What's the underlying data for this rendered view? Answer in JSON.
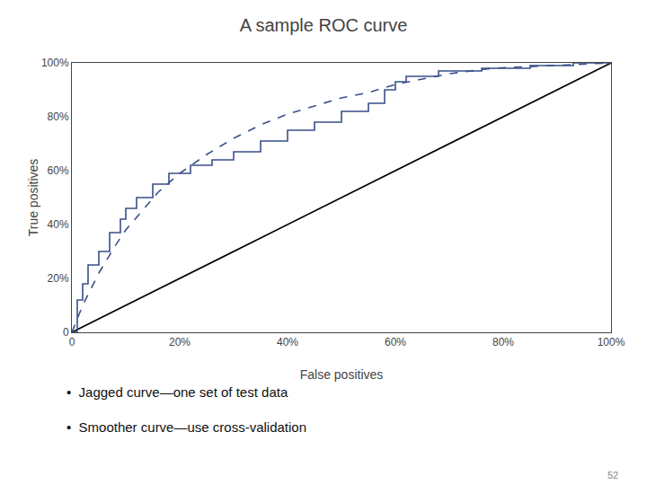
{
  "chart_data": {
    "type": "line",
    "title": "A sample ROC curve",
    "x_label": "False positives",
    "y_label": "True positives",
    "series": [
      {
        "x": [
          0,
          1
        ],
        "values": [
          0,
          1
        ],
        "color": "#000000",
        "line_style": "solid"
      },
      {
        "x": [
          0,
          0.02,
          0.05,
          0.08,
          0.1,
          0.13,
          0.16,
          0.2,
          0.25,
          0.3,
          0.35,
          0.4,
          0.45,
          0.5,
          0.55,
          0.6,
          0.65,
          0.7,
          0.78,
          0.88,
          1.0
        ],
        "values": [
          0,
          0.1,
          0.22,
          0.32,
          0.38,
          0.45,
          0.52,
          0.59,
          0.66,
          0.72,
          0.77,
          0.81,
          0.84,
          0.87,
          0.89,
          0.92,
          0.94,
          0.96,
          0.98,
          0.99,
          1.0
        ],
        "color": "#3a4f8a",
        "line_style": "dashed"
      },
      {
        "x": [
          0,
          0.01,
          0.01,
          0.02,
          0.02,
          0.03,
          0.03,
          0.05,
          0.05,
          0.07,
          0.07,
          0.09,
          0.09,
          0.1,
          0.1,
          0.12,
          0.12,
          0.15,
          0.15,
          0.18,
          0.18,
          0.22,
          0.22,
          0.26,
          0.26,
          0.3,
          0.3,
          0.35,
          0.35,
          0.4,
          0.4,
          0.45,
          0.45,
          0.5,
          0.5,
          0.55,
          0.55,
          0.58,
          0.58,
          0.6,
          0.6,
          0.62,
          0.62,
          0.68,
          0.68,
          0.76,
          0.76,
          0.85,
          0.85,
          0.93,
          0.93,
          1.0
        ],
        "values": [
          0,
          0,
          0.12,
          0.12,
          0.18,
          0.18,
          0.25,
          0.25,
          0.3,
          0.3,
          0.37,
          0.37,
          0.42,
          0.42,
          0.46,
          0.46,
          0.5,
          0.5,
          0.55,
          0.55,
          0.59,
          0.59,
          0.62,
          0.62,
          0.64,
          0.64,
          0.67,
          0.67,
          0.71,
          0.71,
          0.75,
          0.75,
          0.78,
          0.78,
          0.82,
          0.82,
          0.85,
          0.85,
          0.9,
          0.9,
          0.93,
          0.93,
          0.95,
          0.95,
          0.97,
          0.97,
          0.98,
          0.98,
          0.99,
          0.99,
          1.0,
          1.0
        ],
        "color": "#3a4f8a",
        "line_style": "solid"
      }
    ],
    "xlim": [
      0,
      1.0
    ],
    "ylim": [
      0,
      1.0
    ],
    "xticks": [
      0,
      {
        "value": 0.2,
        "label": "20%"
      },
      {
        "value": 0.4,
        "label": "40%"
      },
      {
        "value": 0.6,
        "label": "60%"
      },
      {
        "value": 0.8,
        "label": "80%"
      },
      {
        "value": 1.0,
        "label": "100%"
      }
    ],
    "yticks": [
      0,
      {
        "value": 0.2,
        "label": "20%"
      },
      {
        "value": 0.4,
        "label": "40%"
      },
      {
        "value": 0.6,
        "label": "60%"
      },
      {
        "value": 0.8,
        "label": "80%"
      },
      {
        "value": 1.0,
        "label": "100%"
      }
    ],
    "grid": false,
    "annotations": [
      {
        "text": "•  Jagged curve—one set of test data"
      },
      {
        "text": "•  Smoother curve—use cross-validation"
      },
      {
        "text": "52"
      }
    ]
  }
}
